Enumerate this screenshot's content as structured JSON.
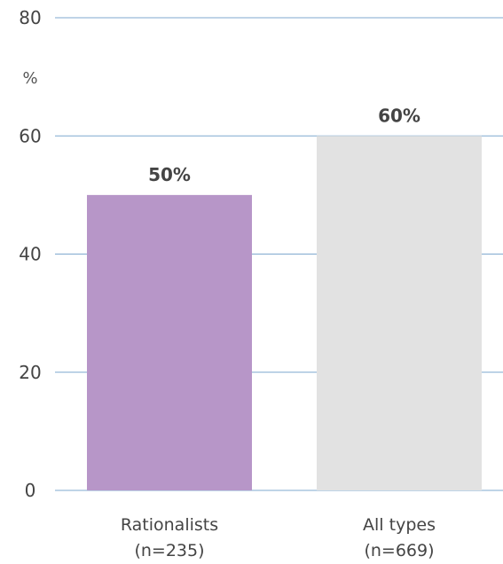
{
  "chart_data": {
    "type": "bar",
    "ylabel": "%",
    "ylim": [
      0,
      80
    ],
    "yticks": [
      0,
      20,
      40,
      60,
      80
    ],
    "categories": [
      {
        "label": "Rationalists",
        "sublabel": "(n=235)"
      },
      {
        "label": "All types",
        "sublabel": "(n=669)"
      }
    ],
    "values": [
      50,
      60
    ],
    "value_labels": [
      "50%",
      "60%"
    ],
    "grid": true,
    "colors": {
      "bars": [
        "#b796c8",
        "#e2e2e2"
      ],
      "grid": "#7fa8cf",
      "text": "#444444"
    }
  }
}
